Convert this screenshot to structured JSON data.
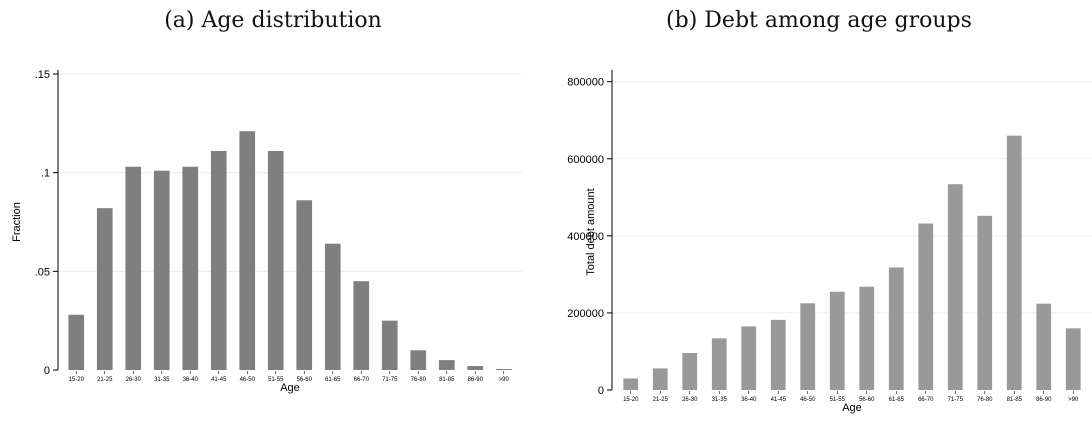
{
  "chart_data": [
    {
      "type": "bar",
      "title": "(a) Age distribution",
      "xlabel": "Age",
      "ylabel": "Fraction",
      "ylim": [
        0,
        0.15
      ],
      "yticks": [
        0,
        0.05,
        0.1,
        0.15
      ],
      "ytick_labels": [
        "0",
        ".05",
        ".1",
        ".15"
      ],
      "grid": true,
      "bar_color": "#7f7f7f",
      "categories": [
        "15-20",
        "21-25",
        "26-30",
        "31-35",
        "36-40",
        "41-45",
        "46-50",
        "51-55",
        "56-60",
        "61-65",
        "66-70",
        "71-75",
        "76-80",
        "81-85",
        "86-90",
        ">90"
      ],
      "values": [
        0.028,
        0.082,
        0.103,
        0.101,
        0.103,
        0.111,
        0.121,
        0.111,
        0.086,
        0.064,
        0.045,
        0.025,
        0.01,
        0.005,
        0.002,
        0.0005
      ]
    },
    {
      "type": "bar",
      "title": "(b) Debt among age groups",
      "xlabel": "Age",
      "ylabel": "Total debt amount",
      "ylim": [
        0,
        820000
      ],
      "yticks": [
        0,
        200000,
        400000,
        600000,
        800000
      ],
      "ytick_labels": [
        "0",
        "200000",
        "400000",
        "600000",
        "800000"
      ],
      "grid": true,
      "bar_color": "#999999",
      "categories": [
        "15-20",
        "21-25",
        "26-30",
        "31-35",
        "36-40",
        "41-45",
        "46-50",
        "51-55",
        "56-60",
        "61-65",
        "66-70",
        "71-75",
        "76-80",
        "81-85",
        "86-90",
        ">90"
      ],
      "values": [
        30000,
        56000,
        96000,
        134000,
        165000,
        182000,
        225000,
        255000,
        268000,
        318000,
        432000,
        534000,
        452000,
        660000,
        224000,
        160000
      ]
    }
  ]
}
